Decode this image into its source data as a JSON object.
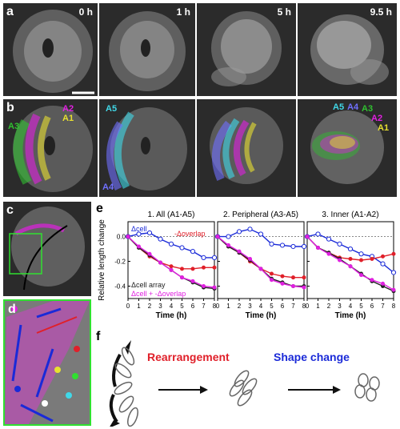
{
  "figure": {
    "panel_labels": {
      "a": "a",
      "b": "b",
      "c": "c",
      "d": "d",
      "e": "e",
      "f": "f"
    },
    "timepoints": [
      "0 h",
      "1 h",
      "5 h",
      "9.5 h"
    ],
    "array_labels_b1": [
      "A3",
      "A2",
      "A1"
    ],
    "array_labels_b2": [
      "A5",
      "A4"
    ],
    "array_labels_b4": [
      "A5",
      "A4",
      "A3",
      "A2",
      "A1"
    ],
    "colors": {
      "A1": "#e8e030",
      "A2": "#e020e0",
      "A3": "#30c030",
      "A4": "#7070ff",
      "A5": "#40d8e8",
      "blue": "#1a2ad8",
      "red": "#e0202a",
      "purple": "#8a2a8a",
      "black": "#222222"
    }
  },
  "panel_e": {
    "subplot_titles": [
      "1. All (A1-A5)",
      "2. Peripheral (A3-A5)",
      "3. Inner (A1-A2)"
    ],
    "legend": {
      "cell": "Δcell",
      "overlap": "-Δoverlap",
      "array": "Δcell array",
      "sum": "Δcell + -Δoverlap"
    }
  },
  "panel_f": {
    "rearrangement": "Rearrangement",
    "shape_change": "Shape change"
  },
  "chart_data": {
    "type": "line",
    "ylabel": "Relative length change",
    "xlabel": "Time (h)",
    "x": [
      0,
      1,
      2,
      3,
      4,
      5,
      6,
      7,
      8
    ],
    "xticks": [
      0,
      1,
      2,
      3,
      4,
      5,
      6,
      7,
      8
    ],
    "yticks": [
      0.0,
      -0.2,
      -0.4
    ],
    "ytick_labels": [
      "0.0",
      "-0.2",
      "-0.4"
    ],
    "ylim": [
      -0.5,
      0.12
    ],
    "subplots": [
      {
        "title": "1. All (A1-A5)",
        "series": [
          {
            "name": "Δcell",
            "color": "#1a2ad8",
            "values": [
              0.0,
              0.02,
              0.03,
              -0.02,
              -0.06,
              -0.09,
              -0.12,
              -0.17,
              -0.17
            ]
          },
          {
            "name": "-Δoverlap",
            "color": "#e0202a",
            "values": [
              0.0,
              -0.09,
              -0.16,
              -0.21,
              -0.24,
              -0.26,
              -0.26,
              -0.25,
              -0.25
            ]
          },
          {
            "name": "Δcell array",
            "color": "#222222",
            "values": [
              0.0,
              -0.09,
              -0.15,
              -0.21,
              -0.27,
              -0.33,
              -0.37,
              -0.41,
              -0.42
            ]
          },
          {
            "name": "Δcell + -Δoverlap",
            "color": "#e020e0",
            "values": [
              0.0,
              -0.08,
              -0.14,
              -0.21,
              -0.27,
              -0.33,
              -0.36,
              -0.4,
              -0.41
            ]
          }
        ]
      },
      {
        "title": "2. Peripheral (A3-A5)",
        "series": [
          {
            "name": "Δcell",
            "color": "#1a2ad8",
            "values": [
              0.0,
              0.0,
              0.04,
              0.06,
              0.02,
              -0.06,
              -0.07,
              -0.08,
              -0.08
            ]
          },
          {
            "name": "-Δoverlap",
            "color": "#e0202a",
            "values": [
              0.0,
              -0.08,
              -0.13,
              -0.2,
              -0.26,
              -0.3,
              -0.32,
              -0.33,
              -0.33
            ]
          },
          {
            "name": "Δcell array",
            "color": "#222222",
            "values": [
              0.0,
              -0.08,
              -0.13,
              -0.19,
              -0.26,
              -0.34,
              -0.37,
              -0.4,
              -0.4
            ]
          },
          {
            "name": "Δcell + -Δoverlap",
            "color": "#e020e0",
            "values": [
              0.0,
              -0.07,
              -0.12,
              -0.18,
              -0.26,
              -0.35,
              -0.38,
              -0.4,
              -0.41
            ]
          }
        ]
      },
      {
        "title": "3. Inner (A1-A2)",
        "series": [
          {
            "name": "Δcell",
            "color": "#1a2ad8",
            "values": [
              0.0,
              0.02,
              -0.02,
              -0.06,
              -0.1,
              -0.14,
              -0.16,
              -0.22,
              -0.29
            ]
          },
          {
            "name": "-Δoverlap",
            "color": "#e0202a",
            "values": [
              0.0,
              -0.09,
              -0.13,
              -0.17,
              -0.18,
              -0.19,
              -0.18,
              -0.16,
              -0.14
            ]
          },
          {
            "name": "Δcell array",
            "color": "#222222",
            "values": [
              0.0,
              -0.09,
              -0.13,
              -0.18,
              -0.24,
              -0.3,
              -0.36,
              -0.4,
              -0.44
            ]
          },
          {
            "name": "Δcell + -Δoverlap",
            "color": "#e020e0",
            "values": [
              0.0,
              -0.09,
              -0.14,
              -0.19,
              -0.24,
              -0.31,
              -0.35,
              -0.38,
              -0.43
            ]
          }
        ]
      }
    ]
  }
}
